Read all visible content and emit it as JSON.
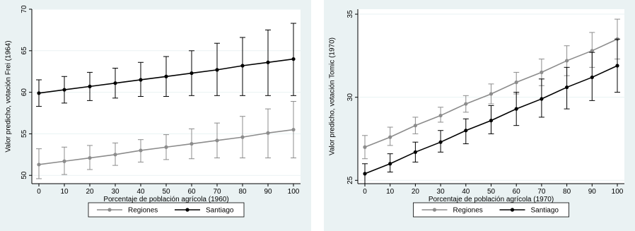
{
  "colors": {
    "panel_background": "#eaf2f3",
    "plot_background": "#ffffff",
    "grid": "#eaf2f3",
    "regiones": "#8c8c8c",
    "santiago": "#000000"
  },
  "chart_data": [
    {
      "type": "line",
      "xlabel": "Porcentaje de población agrícola (1960)",
      "ylabel": "Valor predicho, votación Frei (1964)",
      "x": [
        0,
        10,
        20,
        30,
        40,
        50,
        60,
        70,
        80,
        90,
        100
      ],
      "x_ticks": [
        "0",
        "10",
        "20",
        "30",
        "40",
        "50",
        "60",
        "70",
        "80",
        "90",
        "100"
      ],
      "ylim": [
        49,
        70
      ],
      "y_ticks": [
        "50",
        "55",
        "60",
        "65",
        "70"
      ],
      "grid": true,
      "legend_position": "bottom",
      "series": [
        {
          "name": "Regiones",
          "color": "#8c8c8c",
          "values": [
            51.3,
            51.7,
            52.1,
            52.5,
            53.0,
            53.4,
            53.8,
            54.2,
            54.6,
            55.1,
            55.5
          ],
          "ci_low": [
            49.6,
            50.1,
            50.7,
            51.2,
            51.6,
            51.9,
            52.0,
            52.1,
            52.1,
            52.1,
            52.1
          ],
          "ci_high": [
            53.2,
            53.4,
            53.6,
            53.9,
            54.3,
            54.9,
            55.6,
            56.3,
            57.1,
            58.0,
            58.9
          ]
        },
        {
          "name": "Santiago",
          "color": "#000000",
          "values": [
            59.9,
            60.3,
            60.7,
            61.1,
            61.5,
            61.9,
            62.3,
            62.7,
            63.2,
            63.6,
            64.0
          ],
          "ci_low": [
            58.3,
            58.7,
            59.0,
            59.3,
            59.5,
            59.5,
            59.6,
            59.6,
            59.6,
            59.6,
            59.6
          ],
          "ci_high": [
            61.5,
            61.9,
            62.4,
            62.9,
            63.6,
            64.3,
            65.0,
            65.9,
            66.6,
            67.5,
            68.3
          ]
        }
      ]
    },
    {
      "type": "line",
      "xlabel": "Porcentaje de población agrícola (1970)",
      "ylabel": "Valor predicho, votación Tomic (1970)",
      "x": [
        0,
        10,
        20,
        30,
        40,
        50,
        60,
        70,
        80,
        90,
        100
      ],
      "x_ticks": [
        "0",
        "10",
        "20",
        "30",
        "40",
        "50",
        "60",
        "70",
        "80",
        "90",
        "100"
      ],
      "ylim": [
        24.8,
        35.3
      ],
      "y_ticks": [
        "25",
        "30",
        "35"
      ],
      "grid": true,
      "legend_position": "bottom",
      "series": [
        {
          "name": "Regiones",
          "color": "#8c8c8c",
          "values": [
            27.0,
            27.6,
            28.3,
            28.9,
            29.6,
            30.2,
            30.9,
            31.5,
            32.2,
            32.8,
            33.5
          ],
          "ci_low": [
            26.3,
            27.1,
            27.8,
            28.5,
            29.1,
            29.6,
            30.2,
            30.7,
            31.3,
            31.8,
            32.3
          ],
          "ci_high": [
            27.7,
            28.2,
            28.8,
            29.4,
            30.1,
            30.8,
            31.5,
            32.3,
            33.1,
            33.9,
            34.7
          ]
        },
        {
          "name": "Santiago",
          "color": "#000000",
          "values": [
            25.4,
            26.0,
            26.7,
            27.3,
            28.0,
            28.6,
            29.3,
            29.9,
            30.6,
            31.2,
            31.9
          ],
          "ci_low": [
            24.8,
            25.5,
            26.1,
            26.7,
            27.2,
            27.8,
            28.3,
            28.8,
            29.3,
            29.8,
            30.3
          ],
          "ci_high": [
            26.0,
            26.6,
            27.3,
            28.0,
            28.7,
            29.5,
            30.3,
            31.1,
            31.8,
            32.7,
            33.5
          ]
        }
      ]
    }
  ]
}
